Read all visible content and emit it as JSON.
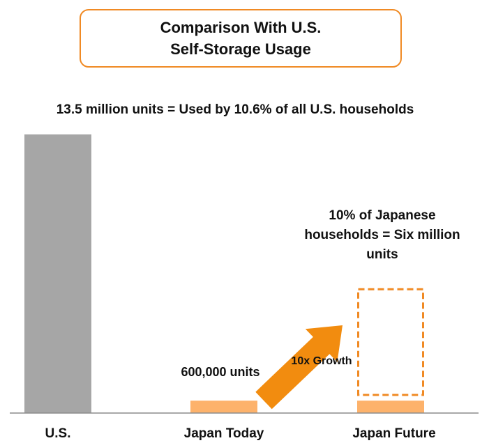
{
  "title": {
    "line1": "Comparison With U.S.",
    "line2": "Self-Storage Usage"
  },
  "colors": {
    "us_bar": "#a6a6a6",
    "japan_bar": "#fdb26b",
    "future_outline": "#f08a24",
    "arrow": "#f28c0f",
    "title_border": "#f08a24"
  },
  "chart_data": {
    "type": "bar",
    "categories": [
      "U.S.",
      "Japan Today",
      "Japan Future"
    ],
    "values": [
      13.5,
      0.6,
      0.6
    ],
    "projected": {
      "category": "Japan Future",
      "value": 6.0
    },
    "unit": "million units",
    "ylim": [
      0,
      13.5
    ],
    "grid": false,
    "annotations": {
      "us": "13.5 million units = Used by 10.6% of all U.S. households",
      "japan_today": "600,000 units",
      "growth": "10x Growth",
      "future": [
        "10% of Japanese",
        "households = Six million",
        "units"
      ]
    }
  }
}
